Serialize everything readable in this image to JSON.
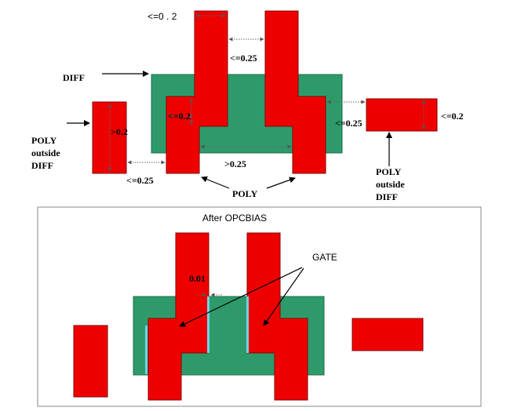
{
  "colors": {
    "poly": "#ee0000",
    "diff": "#2e9a6a",
    "gate": "#6fd3e6",
    "frame": "#888888"
  },
  "top": {
    "labels": {
      "diff": "DIFF",
      "poly_outside_left": [
        "POLY",
        "outside",
        "DIFF"
      ],
      "poly_outside_right": [
        "POLY",
        "outside",
        "DIFF"
      ],
      "poly": "POLY"
    },
    "dimensions": {
      "top_width": "<=0 . 2",
      "top_gap": "<=0.25",
      "left_inner": "<=0.2",
      "left_rect": ">0.2",
      "right_rect": "<=0.2",
      "right_gap": "<=0.25",
      "left_gap": "<=0.25",
      "bottom_gap": ">0.25"
    }
  },
  "bottom": {
    "title": "After OPCBIAS",
    "gate_label": "GATE",
    "dimension": "0.01"
  }
}
